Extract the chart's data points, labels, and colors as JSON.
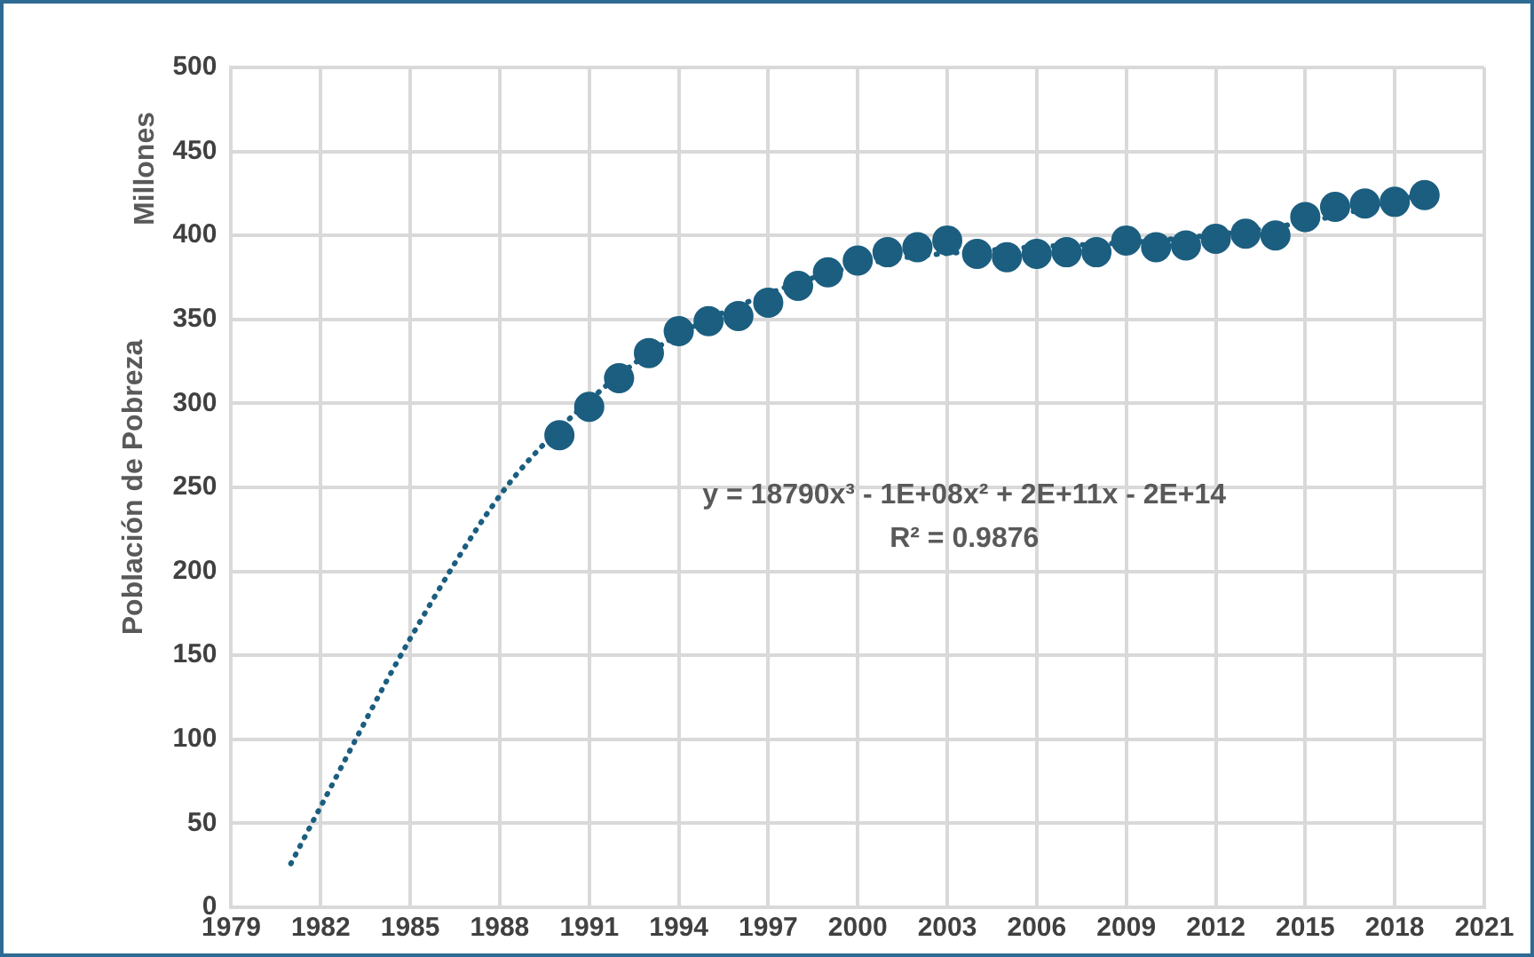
{
  "chart_data": {
    "type": "scatter",
    "ylabel": "Población de Pobreza",
    "annotations": [
      "Millones",
      "y = 18790x³ - 1E+08x² + 2E+11x - 2E+14",
      "R² = 0.9876"
    ],
    "series": [
      {
        "color": "#1b5e80",
        "marker": "circle",
        "x": [
          1990,
          1991,
          1992,
          1993,
          1994,
          1995,
          1996,
          1997,
          1998,
          1999,
          2000,
          2001,
          2002,
          2003,
          2004,
          2005,
          2006,
          2007,
          2008,
          2009,
          2010,
          2011,
          2012,
          2013,
          2014,
          2015,
          2016,
          2017,
          2018,
          2019
        ],
        "values": [
          281,
          298,
          315,
          330,
          343,
          349,
          352,
          360,
          370,
          378,
          385,
          390,
          393,
          397,
          389,
          387,
          389,
          390,
          390,
          397,
          393,
          394,
          398,
          401,
          400,
          411,
          417,
          419,
          420,
          424
        ]
      },
      {
        "type": "line",
        "color": "#1b5e80",
        "line_style": "dotted",
        "marker": "none",
        "x": [
          1981,
          1982,
          1985,
          1988,
          1990,
          1993,
          1996,
          2000,
          2005,
          2010,
          2015,
          2019
        ],
        "values": [
          26,
          60,
          160,
          245,
          285,
          330,
          358,
          382,
          392,
          397,
          408,
          425
        ]
      }
    ],
    "xlim": [
      1979,
      2021
    ],
    "xticks": [
      1979,
      1982,
      1985,
      1988,
      1991,
      1994,
      1997,
      2000,
      2003,
      2006,
      2009,
      2012,
      2015,
      2018,
      2021
    ],
    "ylim": [
      0,
      500
    ],
    "yticks": [
      0,
      50,
      100,
      150,
      200,
      250,
      300,
      350,
      400,
      450,
      500
    ],
    "grid": true,
    "legend": false
  }
}
